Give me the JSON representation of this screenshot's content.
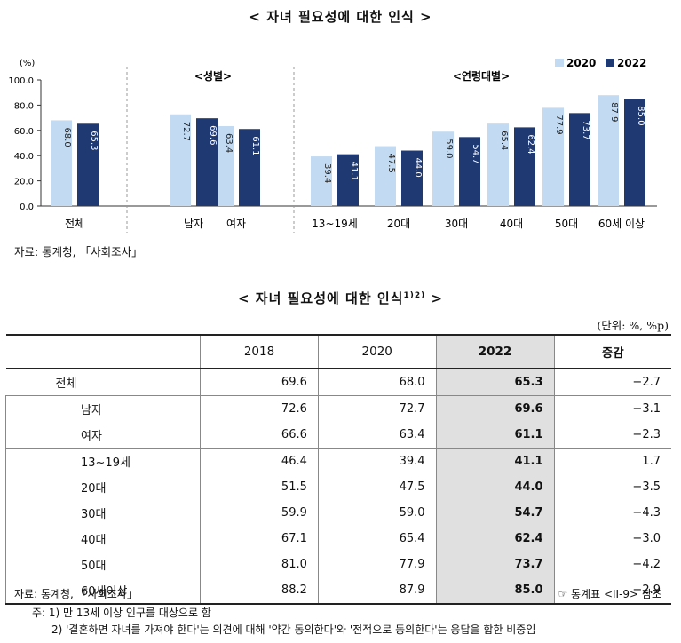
{
  "chart": {
    "title": "< 자녀 필요성에 대한 인식 >",
    "unit_label": "(%)",
    "group_labels": [
      "<성별>",
      "<연령대별>"
    ],
    "source": "자료: 통계청, 「사회조사」"
  },
  "chart_data": {
    "type": "bar",
    "categories": [
      "전체",
      "남자",
      "여자",
      "13~19세",
      "20대",
      "30대",
      "40대",
      "50대",
      "60세 이상"
    ],
    "series": [
      {
        "name": "2020",
        "values": [
          68.0,
          72.7,
          63.4,
          39.4,
          47.5,
          59.0,
          65.4,
          77.9,
          87.9
        ]
      },
      {
        "name": "2022",
        "values": [
          65.3,
          69.6,
          61.1,
          41.1,
          44.0,
          54.7,
          62.4,
          73.7,
          85.0
        ]
      }
    ],
    "yticks": [
      "0.0",
      "20.0",
      "40.0",
      "60.0",
      "80.0",
      "100.0"
    ],
    "ylim": [
      0,
      100
    ],
    "legend": "top-right",
    "colors": {
      "2020": "#c2dbf2",
      "2022": "#1f3a73"
    }
  },
  "table": {
    "title": "< 자녀 필요성에 대한 인식",
    "title_sup": "1)2)",
    "title_end": " >",
    "unit": "(단위: %, %p)",
    "headers": [
      "",
      "2018",
      "2020",
      "2022",
      "증감"
    ],
    "rows": [
      {
        "label": "전체",
        "v2018": "69.6",
        "v2020": "68.0",
        "v2022": "65.3",
        "change": "-2.7"
      },
      {
        "label": "남자",
        "v2018": "72.6",
        "v2020": "72.7",
        "v2022": "69.6",
        "change": "-3.1"
      },
      {
        "label": "여자",
        "v2018": "66.6",
        "v2020": "63.4",
        "v2022": "61.1",
        "change": "-2.3"
      },
      {
        "label": "13~19세",
        "v2018": "46.4",
        "v2020": "39.4",
        "v2022": "41.1",
        "change": "1.7"
      },
      {
        "label": "20대",
        "v2018": "51.5",
        "v2020": "47.5",
        "v2022": "44.0",
        "change": "-3.5"
      },
      {
        "label": "30대",
        "v2018": "59.9",
        "v2020": "59.0",
        "v2022": "54.7",
        "change": "-4.3"
      },
      {
        "label": "40대",
        "v2018": "67.1",
        "v2020": "65.4",
        "v2022": "62.4",
        "change": "-3.0"
      },
      {
        "label": "50대",
        "v2018": "81.0",
        "v2020": "77.9",
        "v2022": "73.7",
        "change": "-4.2"
      },
      {
        "label": "60세이상",
        "v2018": "88.2",
        "v2020": "87.9",
        "v2022": "85.0",
        "change": "-2.9"
      }
    ],
    "source": "자료: 통계청, 「사회조사」",
    "reference": "☞ 통계표 <II-9> 참조",
    "note1": "주: 1) 만 13세 이상 인구를 대상으로 함",
    "note2": "2) '결혼하면 자녀를 가져야 한다'는 의견에 대해 '약간 동의한다'와 '전적으로 동의한다'는 응답을 합한 비중임"
  }
}
